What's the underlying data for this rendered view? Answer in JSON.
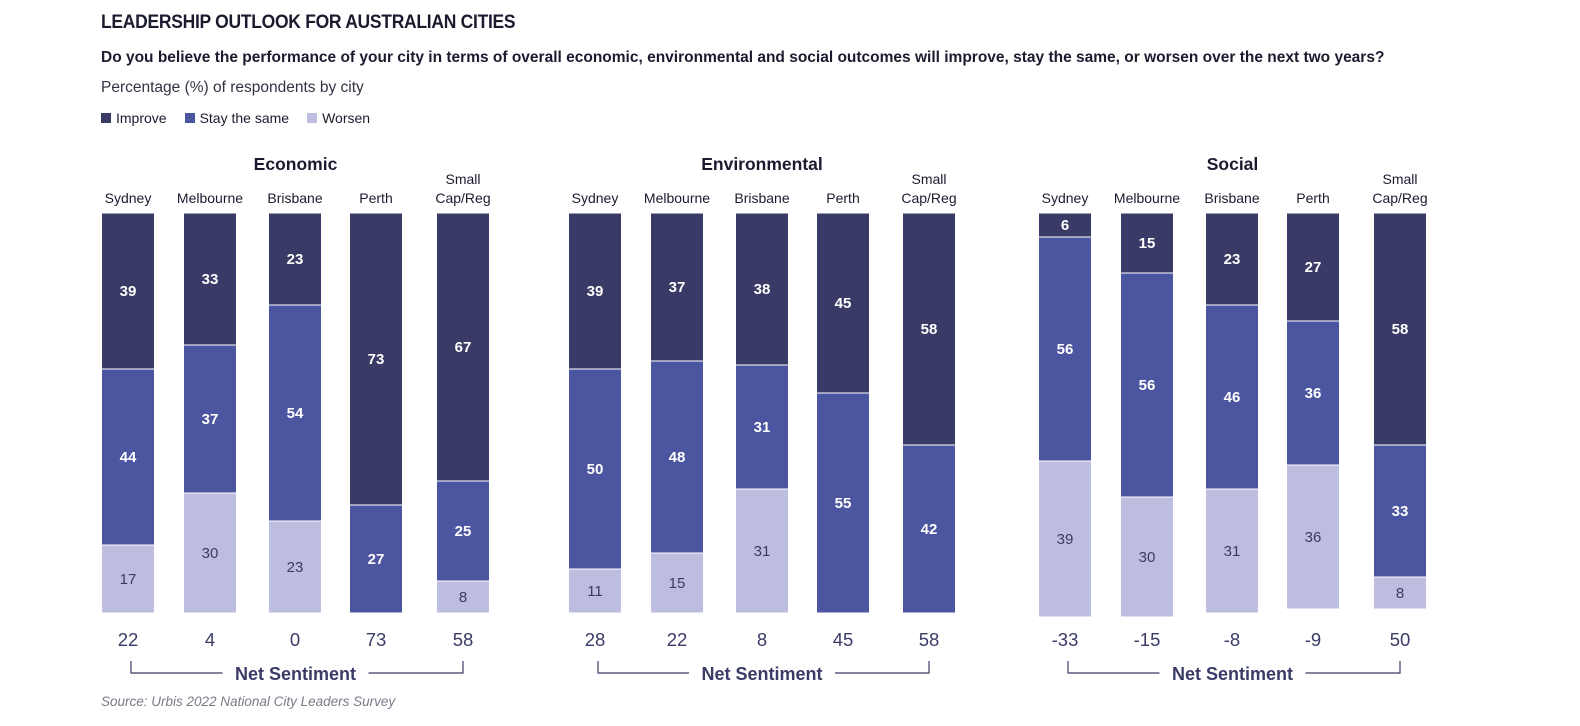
{
  "title": "LEADERSHIP OUTLOOK FOR AUSTRALIAN CITIES",
  "question": "Do you believe the performance of your city in terms of overall economic, environmental and social outcomes will improve, stay the same, or worsen over the next two years?",
  "subtitle": "Percentage (%) of respondents by city",
  "source": "Source: Urbis 2022 National City Leaders Survey",
  "legend": [
    {
      "name": "Improve",
      "color": "#393a65"
    },
    {
      "name": "Stay the same",
      "color": "#4c55a0"
    },
    {
      "name": "Worsen",
      "color": "#bdbde0"
    }
  ],
  "net_sentiment_label": "Net Sentiment",
  "chart_data": [
    {
      "type": "bar",
      "stacked": true,
      "title": "Economic",
      "categories": [
        [
          "Sydney"
        ],
        [
          "Melbourne"
        ],
        [
          "Brisbane"
        ],
        [
          "Perth"
        ],
        [
          "Small",
          "Cap/Reg"
        ]
      ],
      "series": [
        {
          "name": "Improve",
          "values": [
            39,
            33,
            23,
            73,
            67
          ]
        },
        {
          "name": "Stay the same",
          "values": [
            44,
            37,
            54,
            27,
            25
          ]
        },
        {
          "name": "Worsen",
          "values": [
            17,
            30,
            23,
            0,
            8
          ]
        }
      ],
      "net_sentiment": [
        22,
        4,
        0,
        73,
        58
      ]
    },
    {
      "type": "bar",
      "stacked": true,
      "title": "Environmental",
      "categories": [
        [
          "Sydney"
        ],
        [
          "Melbourne"
        ],
        [
          "Brisbane"
        ],
        [
          "Perth"
        ],
        [
          "Small",
          "Cap/Reg"
        ]
      ],
      "series": [
        {
          "name": "Improve",
          "values": [
            39,
            37,
            38,
            45,
            58
          ]
        },
        {
          "name": "Stay the same",
          "values": [
            50,
            48,
            31,
            55,
            42
          ]
        },
        {
          "name": "Worsen",
          "values": [
            11,
            15,
            31,
            0,
            0
          ]
        }
      ],
      "net_sentiment": [
        28,
        22,
        8,
        45,
        58
      ]
    },
    {
      "type": "bar",
      "stacked": true,
      "title": "Social",
      "categories": [
        [
          "Sydney"
        ],
        [
          "Melbourne"
        ],
        [
          "Brisbane"
        ],
        [
          "Perth"
        ],
        [
          "Small",
          "Cap/Reg"
        ]
      ],
      "series": [
        {
          "name": "Improve",
          "values": [
            6,
            15,
            23,
            27,
            58
          ]
        },
        {
          "name": "Stay the same",
          "values": [
            56,
            56,
            46,
            36,
            33
          ]
        },
        {
          "name": "Worsen",
          "values": [
            39,
            30,
            31,
            36,
            8
          ]
        }
      ],
      "net_sentiment": [
        -33,
        -15,
        -8,
        -9,
        50
      ]
    }
  ]
}
